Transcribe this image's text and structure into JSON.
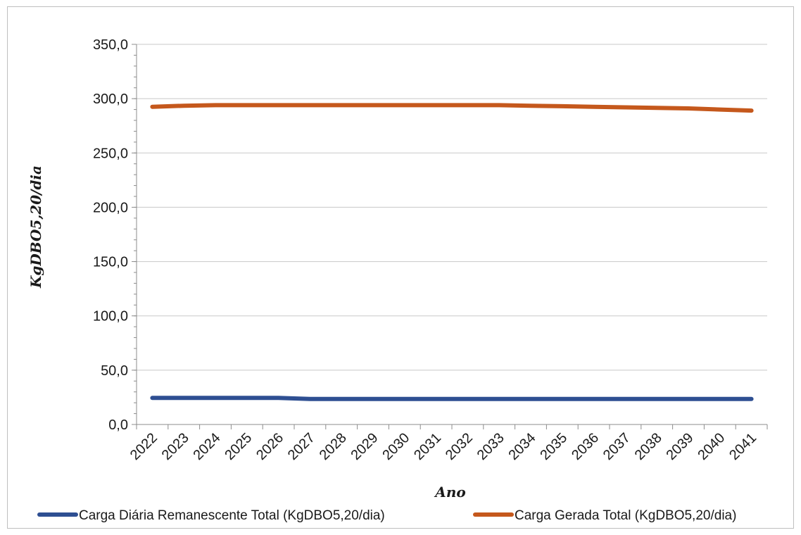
{
  "chart_data": {
    "type": "line",
    "xlabel": "Ano",
    "ylabel": "KgDBO5,20/dia",
    "ylim": [
      0,
      350
    ],
    "yticks": [
      "0,0",
      "50,0",
      "100,0",
      "150,0",
      "200,0",
      "250,0",
      "300,0",
      "350,0"
    ],
    "categories": [
      "2022",
      "2023",
      "2024",
      "2025",
      "2026",
      "2027",
      "2028",
      "2029",
      "2030",
      "2031",
      "2032",
      "2033",
      "2034",
      "2035",
      "2036",
      "2037",
      "2038",
      "2039",
      "2040",
      "2041"
    ],
    "grid": "horizontal",
    "legend_position": "bottom",
    "series": [
      {
        "name": "Carga Diária Remanescente Total (KgDBO5,20/dia)",
        "color": "#2e4f92",
        "values": [
          24.5,
          24.5,
          24.5,
          24.5,
          24.5,
          23.5,
          23.5,
          23.5,
          23.5,
          23.5,
          23.5,
          23.5,
          23.5,
          23.5,
          23.5,
          23.5,
          23.5,
          23.5,
          23.5,
          23.5
        ]
      },
      {
        "name": "Carga Gerada Total (KgDBO5,20/dia)",
        "color": "#c5581c",
        "values": [
          292.5,
          293.5,
          294.0,
          294.0,
          294.0,
          294.0,
          294.0,
          294.0,
          294.0,
          294.0,
          294.0,
          294.0,
          293.5,
          293.0,
          292.5,
          292.0,
          291.5,
          291.0,
          290.0,
          289.0
        ]
      }
    ]
  }
}
